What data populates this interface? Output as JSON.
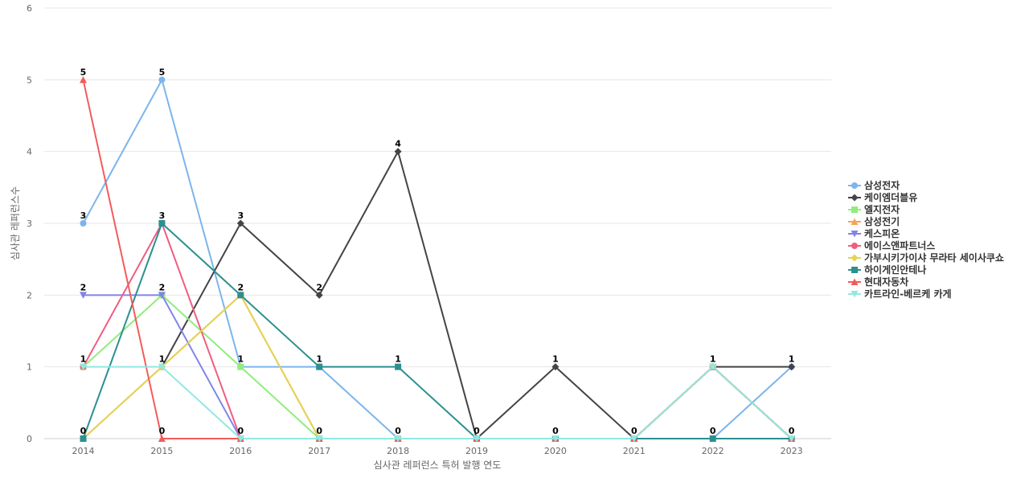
{
  "chart_data": {
    "type": "line",
    "xlabel": "심사관 레퍼런스 특허 발행 연도",
    "ylabel": "심사관 레퍼런스수",
    "ylim": [
      0,
      6
    ],
    "yticks": [
      0,
      1,
      2,
      3,
      4,
      5,
      6
    ],
    "x": [
      "2014",
      "2015",
      "2016",
      "2017",
      "2018",
      "2019",
      "2020",
      "2021",
      "2022",
      "2023"
    ],
    "legend_position": "right",
    "grid": true,
    "series": [
      {
        "name": "삼성전자",
        "color": "#7cb5ec",
        "marker": "circle",
        "values": [
          3,
          5,
          1,
          1,
          0,
          0,
          0,
          0,
          0,
          1
        ]
      },
      {
        "name": "케이엠더블유",
        "color": "#434348",
        "marker": "diamond",
        "values": [
          null,
          1,
          3,
          2,
          4,
          0,
          1,
          0,
          1,
          1
        ]
      },
      {
        "name": "엘지전자",
        "color": "#90ed7d",
        "marker": "square",
        "values": [
          1,
          2,
          1,
          0,
          0,
          0,
          0,
          0,
          1,
          0
        ]
      },
      {
        "name": "삼성전기",
        "color": "#f7a35c",
        "marker": "triangle",
        "values": [
          0,
          1,
          2,
          0,
          0,
          0,
          0,
          0,
          1,
          0
        ]
      },
      {
        "name": "케스피온",
        "color": "#8085e9",
        "marker": "triangle-down",
        "values": [
          2,
          2,
          0,
          0,
          0,
          0,
          0,
          0,
          1,
          0
        ]
      },
      {
        "name": "에이스앤파트너스",
        "color": "#f15c80",
        "marker": "circle",
        "values": [
          1,
          3,
          0,
          0,
          0,
          0,
          0,
          0,
          1,
          0
        ]
      },
      {
        "name": "가부시키가이샤 무라타 세이사쿠쇼",
        "color": "#e4d354",
        "marker": "diamond",
        "values": [
          0,
          1,
          2,
          0,
          0,
          0,
          0,
          0,
          1,
          0
        ]
      },
      {
        "name": "하이게인안테나",
        "color": "#2b908f",
        "marker": "square",
        "values": [
          0,
          3,
          2,
          1,
          1,
          0,
          0,
          0,
          0,
          0
        ]
      },
      {
        "name": "현대자동차",
        "color": "#f45b5b",
        "marker": "triangle",
        "values": [
          5,
          0,
          0,
          0,
          0,
          0,
          0,
          0,
          1,
          0
        ]
      },
      {
        "name": "카트라인-베르케 카게",
        "color": "#91e8e1",
        "marker": "triangle-down",
        "values": [
          1,
          1,
          0,
          0,
          0,
          0,
          0,
          0,
          1,
          0
        ]
      }
    ],
    "data_labels": [
      {
        "x": "2014",
        "y": 5,
        "text": "5"
      },
      {
        "x": "2014",
        "y": 3,
        "text": "3"
      },
      {
        "x": "2014",
        "y": 2,
        "text": "2"
      },
      {
        "x": "2014",
        "y": 1,
        "text": "1"
      },
      {
        "x": "2014",
        "y": 0,
        "text": "0"
      },
      {
        "x": "2015",
        "y": 5,
        "text": "5"
      },
      {
        "x": "2015",
        "y": 3,
        "text": "3"
      },
      {
        "x": "2015",
        "y": 2,
        "text": "2"
      },
      {
        "x": "2015",
        "y": 1,
        "text": "1"
      },
      {
        "x": "2015",
        "y": 0,
        "text": "0"
      },
      {
        "x": "2016",
        "y": 3,
        "text": "3"
      },
      {
        "x": "2016",
        "y": 2,
        "text": "2"
      },
      {
        "x": "2016",
        "y": 1,
        "text": "1"
      },
      {
        "x": "2016",
        "y": 0,
        "text": "0"
      },
      {
        "x": "2017",
        "y": 2,
        "text": "2"
      },
      {
        "x": "2017",
        "y": 1,
        "text": "1"
      },
      {
        "x": "2017",
        "y": 0,
        "text": "0"
      },
      {
        "x": "2018",
        "y": 4,
        "text": "4"
      },
      {
        "x": "2018",
        "y": 1,
        "text": "1"
      },
      {
        "x": "2018",
        "y": 0,
        "text": "0"
      },
      {
        "x": "2019",
        "y": 0,
        "text": "0"
      },
      {
        "x": "2020",
        "y": 1,
        "text": "1"
      },
      {
        "x": "2020",
        "y": 0,
        "text": "0"
      },
      {
        "x": "2021",
        "y": 0,
        "text": "0"
      },
      {
        "x": "2022",
        "y": 1,
        "text": "1"
      },
      {
        "x": "2022",
        "y": 0,
        "text": "0"
      },
      {
        "x": "2023",
        "y": 1,
        "text": "1"
      },
      {
        "x": "2023",
        "y": 0,
        "text": "0"
      }
    ]
  }
}
